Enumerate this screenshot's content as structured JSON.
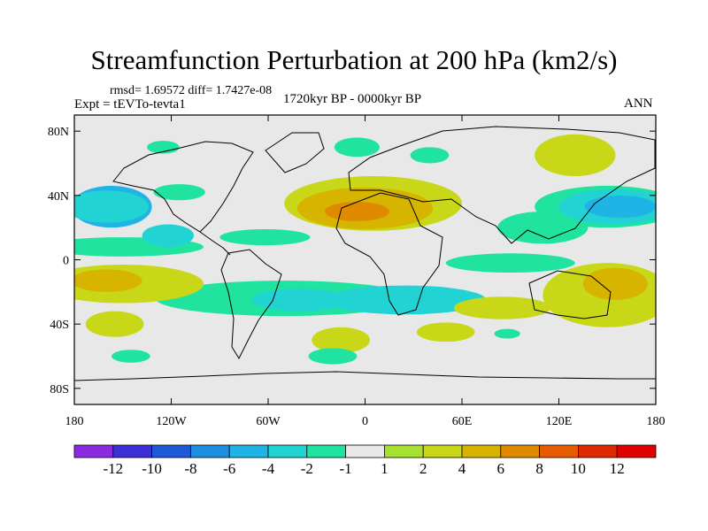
{
  "chart_data": {
    "type": "contour_map",
    "title": "Streamfunction Perturbation at 200 hPa (km2/s)",
    "stats": "rmsd= 1.69572 diff= 1.7427e-08",
    "experiment": "Expt = tEVTo-tevta1",
    "period": "1720kyr BP - 0000kyr BP",
    "season": "ANN",
    "x_ticks": [
      "180",
      "120W",
      "60W",
      "0",
      "60E",
      "120E",
      "180"
    ],
    "y_ticks": [
      "80N",
      "40N",
      "0",
      "40S",
      "80S"
    ],
    "xlim": [
      -180,
      180
    ],
    "ylim": [
      -90,
      90
    ],
    "levels": [
      "-12",
      "-10",
      "-8",
      "-6",
      "-4",
      "-2",
      "-1",
      "1",
      "2",
      "4",
      "6",
      "8",
      "10",
      "12"
    ],
    "colors": [
      "#8a2be2",
      "#3d2fd6",
      "#1e5ad8",
      "#1e8fe0",
      "#20b4e6",
      "#22d3d3",
      "#1fe39e",
      "#e8e8e8",
      "#a6e030",
      "#c8d818",
      "#d6b400",
      "#e08a00",
      "#e65a00",
      "#e02800",
      "#e00000"
    ],
    "bands": [
      {
        "value": -6,
        "lon": -157,
        "lat": 33,
        "rlon": 25,
        "rlat": 13
      },
      {
        "value": -4,
        "lon": -160,
        "lat": 33,
        "rlon": 26,
        "rlat": 10
      },
      {
        "value": -2,
        "lon": -150,
        "lat": 8,
        "rlon": 50,
        "rlat": 6
      },
      {
        "value": -4,
        "lon": -122,
        "lat": 15,
        "rlon": 16,
        "rlat": 7
      },
      {
        "value": -2,
        "lon": -62,
        "lat": 14,
        "rlon": 28,
        "rlat": 5
      },
      {
        "value": -2,
        "lon": -50,
        "lat": -24,
        "rlon": 80,
        "rlat": 11
      },
      {
        "value": -4,
        "lon": -40,
        "lat": -25,
        "rlon": 30,
        "rlat": 7
      },
      {
        "value": -4,
        "lon": 25,
        "lat": -25,
        "rlon": 50,
        "rlat": 9
      },
      {
        "value": -2,
        "lon": 90,
        "lat": -2,
        "rlon": 40,
        "rlat": 6
      },
      {
        "value": -2,
        "lon": 110,
        "lat": 20,
        "rlon": 28,
        "rlat": 10
      },
      {
        "value": -2,
        "lon": 150,
        "lat": 33,
        "rlon": 45,
        "rlat": 13
      },
      {
        "value": -4,
        "lon": 155,
        "lat": 33,
        "rlon": 35,
        "rlat": 11
      },
      {
        "value": -6,
        "lon": 158,
        "lat": 33,
        "rlon": 22,
        "rlat": 7
      },
      {
        "value": -2,
        "lon": -115,
        "lat": 42,
        "rlon": 16,
        "rlat": 5
      },
      {
        "value": -2,
        "lon": -125,
        "lat": 70,
        "rlon": 10,
        "rlat": 4
      },
      {
        "value": -2,
        "lon": -5,
        "lat": 70,
        "rlon": 14,
        "rlat": 6
      },
      {
        "value": -2,
        "lon": 40,
        "lat": 65,
        "rlon": 12,
        "rlat": 5
      },
      {
        "value": 2,
        "lon": -150,
        "lat": -15,
        "rlon": 50,
        "rlat": 12
      },
      {
        "value": 4,
        "lon": -160,
        "lat": -13,
        "rlon": 22,
        "rlat": 7
      },
      {
        "value": 2,
        "lon": 5,
        "lat": 35,
        "rlon": 55,
        "rlat": 17
      },
      {
        "value": 4,
        "lon": 0,
        "lat": 32,
        "rlon": 42,
        "rlat": 13
      },
      {
        "value": 6,
        "lon": -5,
        "lat": 30,
        "rlon": 20,
        "rlat": 6
      },
      {
        "value": 2,
        "lon": 150,
        "lat": -22,
        "rlon": 40,
        "rlat": 20
      },
      {
        "value": 4,
        "lon": 155,
        "lat": -15,
        "rlon": 20,
        "rlat": 10
      },
      {
        "value": 2,
        "lon": 85,
        "lat": -30,
        "rlon": 30,
        "rlat": 7
      },
      {
        "value": 2,
        "lon": -155,
        "lat": -40,
        "rlon": 18,
        "rlat": 8
      },
      {
        "value": 2,
        "lon": -15,
        "lat": -50,
        "rlon": 18,
        "rlat": 8
      },
      {
        "value": 2,
        "lon": 50,
        "lat": -45,
        "rlon": 18,
        "rlat": 6
      },
      {
        "value": 2,
        "lon": 130,
        "lat": 65,
        "rlon": 25,
        "rlat": 13
      },
      {
        "value": -2,
        "lon": -145,
        "lat": -60,
        "rlon": 12,
        "rlat": 4
      },
      {
        "value": -2,
        "lon": -20,
        "lat": -60,
        "rlon": 15,
        "rlat": 5
      },
      {
        "value": -2,
        "lon": 88,
        "lat": -46,
        "rlon": 8,
        "rlat": 3
      }
    ]
  }
}
